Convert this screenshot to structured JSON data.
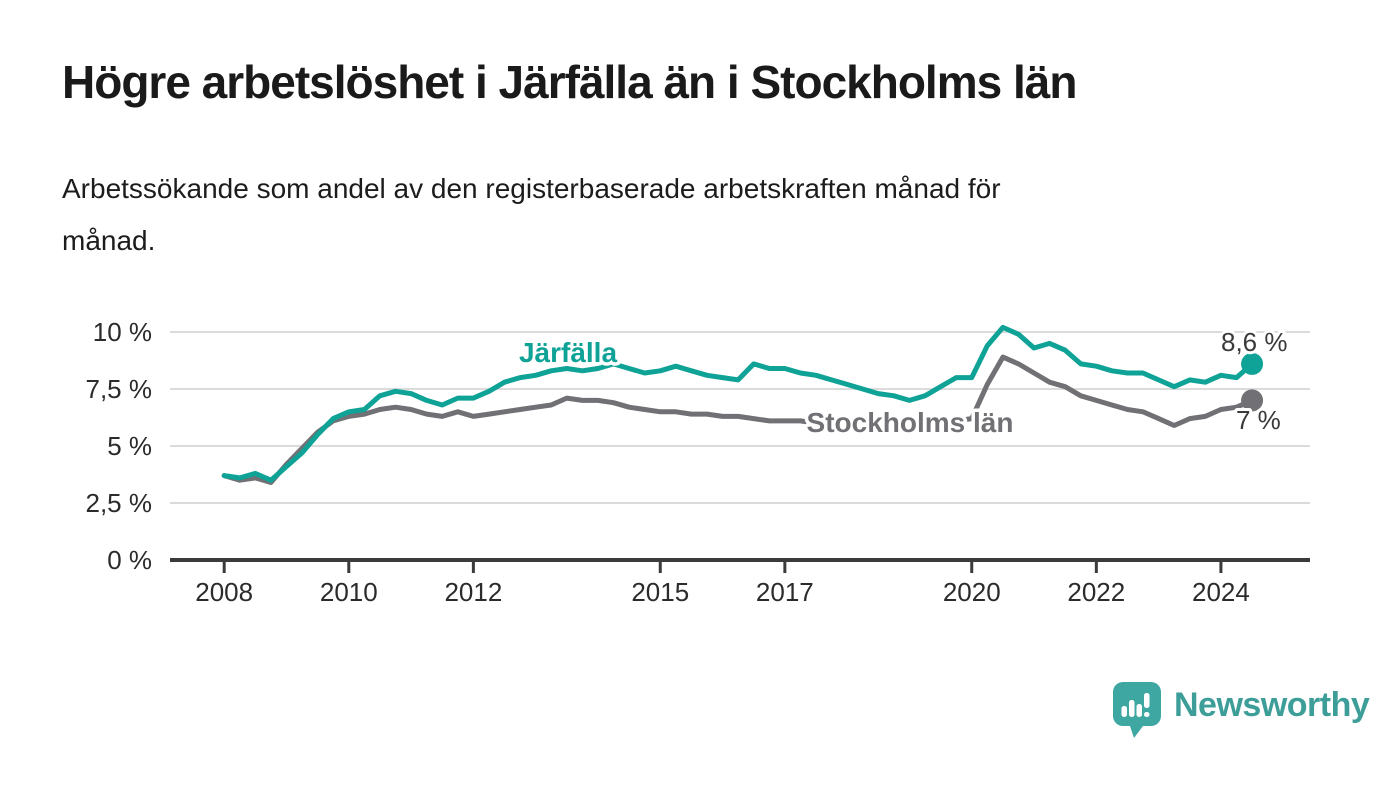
{
  "page": {
    "title": "Högre arbetslöshet i Järfälla än i Stockholms län",
    "subtitle": "Arbetssökande som andel av den registerbaserade arbetskraften månad för månad.",
    "subtitle_lines": [
      "Arbetssökande som andel av den registerbaserade arbetskraften månad för",
      "månad."
    ]
  },
  "brand": {
    "name": "Newsworthy",
    "logo_icon": "speech-bubble-bar-chart-exclamation",
    "logo_color": "#3FA7A1",
    "text_color": "#3D9E99"
  },
  "colors": {
    "background": "#ffffff",
    "title_text": "#1a1a1a",
    "axis": "#3B3B3B",
    "tick_label": "#2B2B2B",
    "gridline": "#DBDBDB",
    "value_label": "#3A3A3A",
    "jarfalla_teal": "#0FA296",
    "stockholm_gray": "#707075"
  },
  "chart_data": {
    "type": "line",
    "title": "",
    "xlabel": "",
    "ylabel": "",
    "grid": "horizontal",
    "legend_position": "inline-labels",
    "x_unit": "year (monthly data)",
    "y_unit": "percent",
    "x_start": 2008.0,
    "x_step": 0.25,
    "x_end": 2024.5,
    "xlim": [
      2007.13,
      2025.43
    ],
    "ylim": [
      0,
      10.5
    ],
    "y_ticks": [
      0,
      2.5,
      5,
      7.5,
      10
    ],
    "y_tick_labels": [
      "0 %",
      "2,5 %",
      "5 %",
      "7,5 %",
      "10 %"
    ],
    "x_ticks": [
      2008,
      2010,
      2012,
      2015,
      2017,
      2020,
      2022,
      2024
    ],
    "x_tick_labels": [
      "2008",
      "2010",
      "2012",
      "2015",
      "2017",
      "2020",
      "2022",
      "2024"
    ],
    "series": [
      {
        "name": "Järfälla",
        "slug": "jarfalla",
        "color": "#0FA296",
        "end_label": "8,6 %",
        "end_value": 8.6,
        "values": [
          3.7,
          3.6,
          3.8,
          3.5,
          4.1,
          4.7,
          5.5,
          6.2,
          6.5,
          6.6,
          7.2,
          7.4,
          7.3,
          7.0,
          6.8,
          7.1,
          7.1,
          7.4,
          7.8,
          8.0,
          8.1,
          8.3,
          8.4,
          8.3,
          8.4,
          8.6,
          8.4,
          8.2,
          8.3,
          8.5,
          8.3,
          8.1,
          8.0,
          7.9,
          8.6,
          8.4,
          8.4,
          8.2,
          8.1,
          7.9,
          7.7,
          7.5,
          7.3,
          7.2,
          7.0,
          7.2,
          7.6,
          8.0,
          8.0,
          9.4,
          10.2,
          9.9,
          9.3,
          9.5,
          9.2,
          8.6,
          8.5,
          8.3,
          8.2,
          8.2,
          7.9,
          7.6,
          7.9,
          7.8,
          8.1,
          8.0,
          8.6
        ]
      },
      {
        "name": "Stockholms län",
        "slug": "stockholms-lan",
        "color": "#707075",
        "end_label": "7 %",
        "end_value": 7.0,
        "values": [
          3.7,
          3.5,
          3.6,
          3.4,
          4.2,
          4.9,
          5.6,
          6.1,
          6.3,
          6.4,
          6.6,
          6.7,
          6.6,
          6.4,
          6.3,
          6.5,
          6.3,
          6.4,
          6.5,
          6.6,
          6.7,
          6.8,
          7.1,
          7.0,
          7.0,
          6.9,
          6.7,
          6.6,
          6.5,
          6.5,
          6.4,
          6.4,
          6.3,
          6.3,
          6.2,
          6.1,
          6.1,
          6.1,
          6.0,
          6.0,
          6.0,
          5.9,
          5.9,
          5.9,
          5.9,
          6.0,
          6.0,
          6.1,
          6.2,
          7.7,
          8.9,
          8.6,
          8.2,
          7.8,
          7.6,
          7.2,
          7.0,
          6.8,
          6.6,
          6.5,
          6.2,
          5.9,
          6.2,
          6.3,
          6.6,
          6.7,
          7.0
        ]
      }
    ]
  }
}
